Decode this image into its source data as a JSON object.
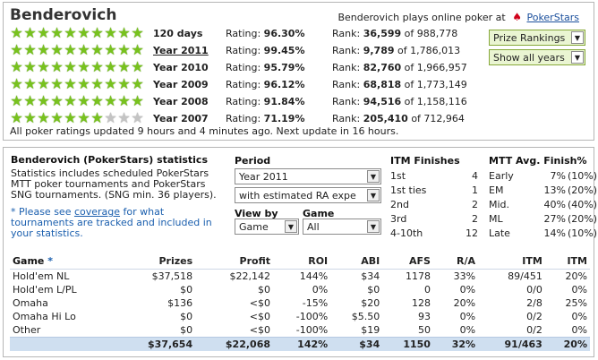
{
  "header": {
    "player_name": "Benderovich",
    "plays_text": "Benderovich plays online poker at",
    "site_link": "PokerStars",
    "site_icon": "pokerstars-spade-icon"
  },
  "ratings": [
    {
      "period": "120 days",
      "rating_label": "Rating:",
      "rating": "96.30%",
      "rank_label": "Rank:",
      "rank": "36,599",
      "of_label": "of",
      "total": "988,778",
      "stars": 10,
      "linked": false
    },
    {
      "period": "Year 2011",
      "rating_label": "Rating:",
      "rating": "99.45%",
      "rank_label": "Rank:",
      "rank": "9,789",
      "of_label": "of",
      "total": "1,786,013",
      "stars": 10,
      "linked": true
    },
    {
      "period": "Year 2010",
      "rating_label": "Rating:",
      "rating": "95.79%",
      "rank_label": "Rank:",
      "rank": "82,760",
      "of_label": "of",
      "total": "1,966,957",
      "stars": 10,
      "linked": false
    },
    {
      "period": "Year 2009",
      "rating_label": "Rating:",
      "rating": "96.12%",
      "rank_label": "Rank:",
      "rank": "68,818",
      "of_label": "of",
      "total": "1,773,149",
      "stars": 10,
      "linked": false
    },
    {
      "period": "Year 2008",
      "rating_label": "Rating:",
      "rating": "91.84%",
      "rank_label": "Rank:",
      "rank": "94,516",
      "of_label": "of",
      "total": "1,158,116",
      "stars": 10,
      "linked": false
    },
    {
      "period": "Year 2007",
      "rating_label": "Rating:",
      "rating": "71.19%",
      "rank_label": "Rank:",
      "rank": "205,410",
      "of_label": "of",
      "total": "712,964",
      "stars": 7,
      "linked": false
    }
  ],
  "update_text": "All poker ratings updated 9 hours and 4 minutes ago. Next update in 16 hours.",
  "buttons": {
    "prize_rankings": "Prize Rankings",
    "show_all_years": "Show all years"
  },
  "stats": {
    "title": "Benderovich (PokerStars) statistics",
    "description": "Statistics includes scheduled PokerStars MTT poker tournaments and PokerStars SNG tournaments. (SNG min. 36 players).",
    "note_prefix": "* Please see ",
    "note_link": "coverage",
    "note_suffix": " for what tournaments are tracked and included in your statistics.",
    "period_label": "Period",
    "period_value": "Year 2011",
    "ra_value": "with estimated RA expe",
    "viewby_label": "View by",
    "viewby_value": "Game",
    "game_label": "Game",
    "game_value": "All"
  },
  "itm_finishes": {
    "title": "ITM Finishes",
    "rows": [
      {
        "label": "1st",
        "value": "4"
      },
      {
        "label": "1st ties",
        "value": "1"
      },
      {
        "label": "2nd",
        "value": "2"
      },
      {
        "label": "3rd",
        "value": "2"
      },
      {
        "label": "4-10th",
        "value": "12"
      }
    ]
  },
  "mtt_finish": {
    "title": "MTT Avg. Finish%",
    "rows": [
      {
        "label": "Early",
        "pct": "7%",
        "target": "(10%)"
      },
      {
        "label": "EM",
        "pct": "13%",
        "target": "(20%)"
      },
      {
        "label": "Mid.",
        "pct": "40%",
        "target": "(40%)"
      },
      {
        "label": "ML",
        "pct": "27%",
        "target": "(20%)"
      },
      {
        "label": "Late",
        "pct": "14%",
        "target": "(10%)"
      }
    ]
  },
  "games_table": {
    "columns": [
      "Game *",
      "Prizes",
      "Profit",
      "ROI",
      "ABI",
      "AFS",
      "R/A",
      "ITM",
      "ITM"
    ],
    "rows": [
      [
        "Hold'em NL",
        "$37,518",
        "$22,142",
        "144%",
        "$34",
        "1178",
        "33%",
        "89/451",
        "20%"
      ],
      [
        "Hold'em L/PL",
        "$0",
        "$0",
        "0%",
        "$0",
        "0",
        "0%",
        "0/0",
        "0%"
      ],
      [
        "Omaha",
        "$136",
        "<$0",
        "-15%",
        "$20",
        "128",
        "20%",
        "2/8",
        "25%"
      ],
      [
        "Omaha Hi Lo",
        "$0",
        "<$0",
        "-100%",
        "$5.50",
        "93",
        "0%",
        "0/2",
        "0%"
      ],
      [
        "Other",
        "$0",
        "<$0",
        "-100%",
        "$19",
        "50",
        "0%",
        "0/2",
        "0%"
      ]
    ],
    "total": [
      "",
      "$37,654",
      "$22,068",
      "142%",
      "$34",
      "1150",
      "32%",
      "91/463",
      "20%"
    ]
  }
}
